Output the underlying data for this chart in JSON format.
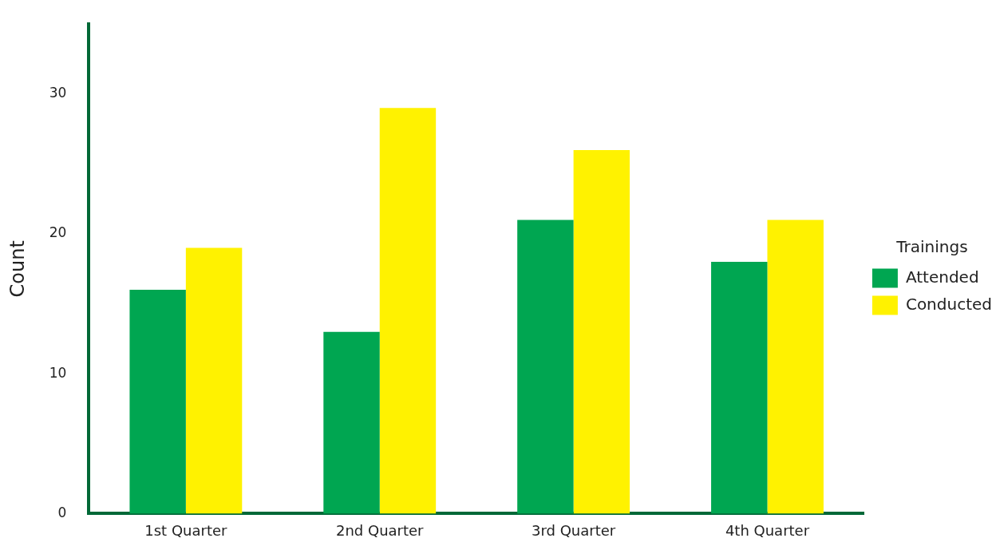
{
  "chart_data": {
    "type": "bar",
    "ylabel": "Count",
    "legend_title": "Trainings",
    "legend": "right",
    "categories": [
      "1st Quarter",
      "2nd Quarter",
      "3rd Quarter",
      "4th Quarter"
    ],
    "series": [
      {
        "name": "Attended",
        "color": "#00a651",
        "values": [
          16,
          13,
          21,
          18
        ]
      },
      {
        "name": "Conducted",
        "color": "#fff200",
        "values": [
          19,
          29,
          26,
          21
        ]
      }
    ],
    "ylim": [
      0,
      35
    ],
    "yticks": [
      0,
      10,
      20,
      30
    ],
    "grid": false
  }
}
